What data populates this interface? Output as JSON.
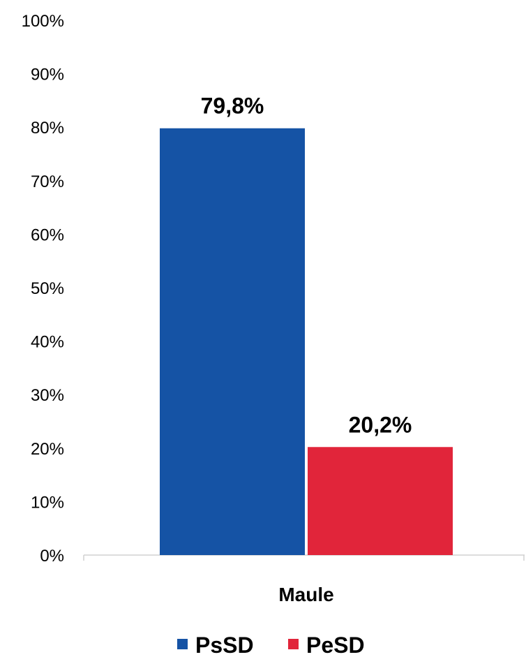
{
  "chart_data": {
    "type": "bar",
    "categories": [
      "Maule"
    ],
    "series": [
      {
        "name": "PsSD",
        "values": [
          79.8
        ],
        "color": "#1553A5",
        "label": "79,8%"
      },
      {
        "name": "PeSD",
        "values": [
          20.2
        ],
        "color": "#E1253A",
        "label": "20,2%"
      }
    ],
    "ylim": [
      0,
      100
    ],
    "yticks": [
      "0%",
      "10%",
      "20%",
      "30%",
      "40%",
      "50%",
      "60%",
      "70%",
      "80%",
      "90%",
      "100%"
    ],
    "grid": false,
    "legend": "bottom",
    "title": "",
    "xlabel": "",
    "ylabel": ""
  }
}
